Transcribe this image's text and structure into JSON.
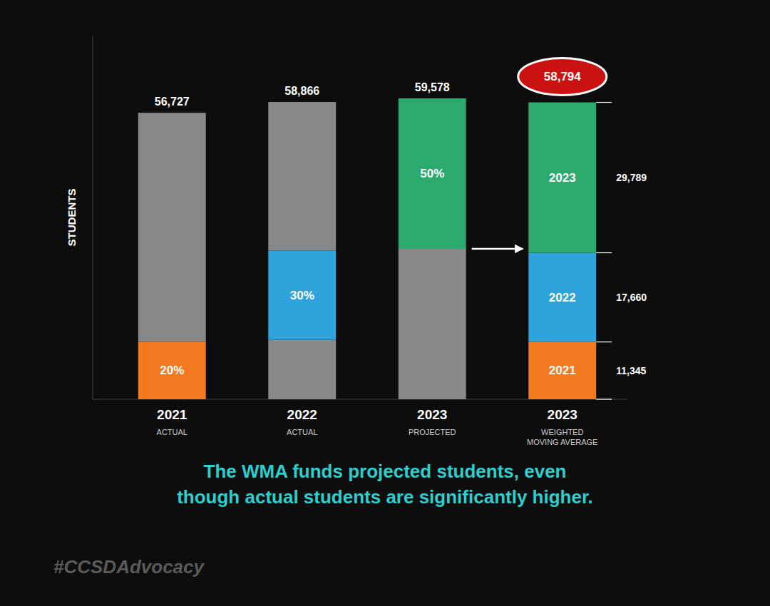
{
  "chart_data": {
    "type": "bar",
    "stacked": true,
    "ylabel": "STUDENTS",
    "categories": [
      "2021",
      "2022",
      "2023",
      "2023"
    ],
    "category_notes": [
      "ACTUAL",
      "ACTUAL",
      "PROJECTED",
      "WEIGHTED\nMOVING AVERAGE"
    ],
    "series": [
      {
        "values": [
          11345,
          11768,
          29789,
          11345
        ],
        "colors": [
          "#f47a20",
          "#888888",
          "#888888",
          "#f47a20"
        ],
        "segment_labels": [
          "20%",
          null,
          null,
          "2021"
        ]
      },
      {
        "values": [
          45382,
          17660,
          29789,
          17660
        ],
        "colors": [
          "#888888",
          "#2fa3dc",
          "#2caa6e",
          "#2fa3dc"
        ],
        "segment_labels": [
          null,
          "30%",
          "50%",
          "2022"
        ]
      },
      {
        "values": [
          null,
          29438,
          null,
          29789
        ],
        "colors": [
          null,
          "#888888",
          null,
          "#2caa6e"
        ],
        "segment_labels": [
          null,
          null,
          null,
          "2023"
        ]
      }
    ],
    "totals": [
      56727,
      58866,
      59578,
      58794
    ],
    "total_labels": [
      "56,727",
      "58,866",
      "59,578",
      "58,794"
    ],
    "side_labels": [
      "11,345",
      "17,660",
      "29,789"
    ],
    "highlight_color": "#cc1111",
    "ylim": [
      0,
      72000
    ],
    "yticks": [],
    "grid": false,
    "tick_labels": "x",
    "subtitle": "The WMA funds projected students, even\nthough actual students are significantly higher.",
    "subtitle_color": "#2ecece",
    "footer": "#CCSDAdvocacy",
    "footer_color": "#5a5a5a",
    "background_color": "#0d0d0d"
  }
}
